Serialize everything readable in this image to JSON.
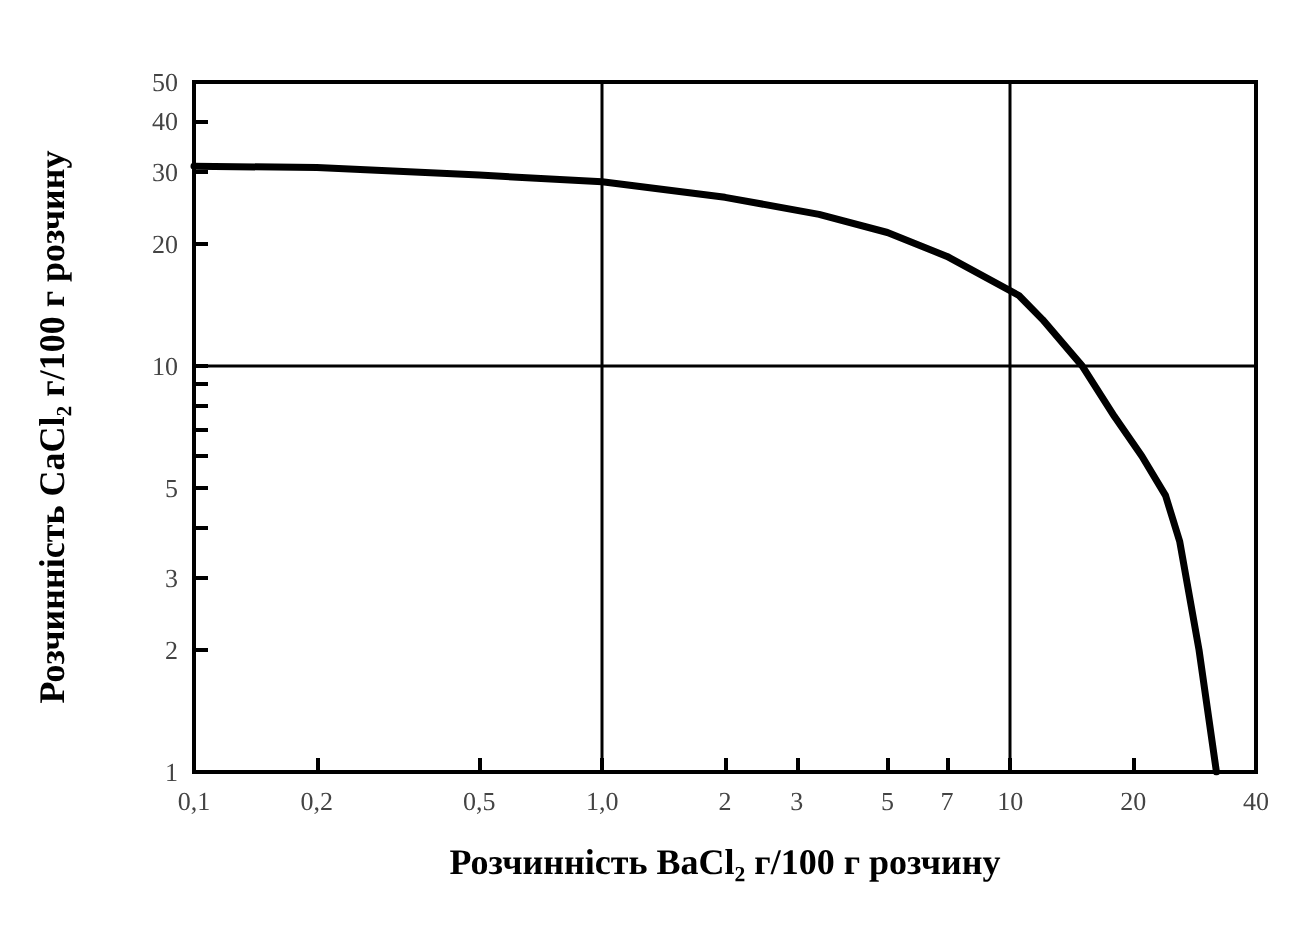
{
  "chart_data": {
    "type": "line",
    "xlabel": "Розчинність BaCl₂ г/100 г розчину",
    "ylabel": "Розчинність CaCl₂ г/100 г розчину",
    "log": "xy",
    "x": [
      0.1,
      0.2,
      0.5,
      1,
      2,
      3.4,
      5,
      7,
      10.5,
      12,
      15,
      18,
      21,
      24,
      26,
      29,
      32
    ],
    "series": [
      {
        "color": "#000000",
        "values": [
          31,
          30.8,
          29.5,
          28.4,
          26,
          23.6,
          21.3,
          18.6,
          14.9,
          13,
          10,
          7.5,
          6,
          4.8,
          3.7,
          2,
          1
        ]
      }
    ],
    "xlim": [
      0.1,
      40
    ],
    "ylim": [
      1,
      50
    ],
    "xticks": [
      {
        "value": 0.1,
        "label": "0,1"
      },
      {
        "value": 0.2,
        "label": "0,2"
      },
      {
        "value": 0.5,
        "label": "0,5"
      },
      {
        "value": 1,
        "label": "1,0"
      },
      2,
      3,
      5,
      7,
      10,
      20,
      40
    ],
    "yticks": [
      1,
      2,
      3,
      {
        "value": 4,
        "label": null
      },
      5,
      {
        "value": 6,
        "label": null
      },
      {
        "value": 7,
        "label": null
      },
      {
        "value": 8,
        "label": null
      },
      {
        "value": 9,
        "label": null
      },
      10,
      20,
      30,
      40,
      50
    ],
    "ref_lines": [
      {
        "axis": "x",
        "value": 1,
        "label": null
      },
      {
        "axis": "x",
        "value": 10,
        "label": null
      },
      {
        "axis": "y",
        "value": 10,
        "label": null
      }
    ],
    "marker": "none",
    "line_style": "solid"
  }
}
